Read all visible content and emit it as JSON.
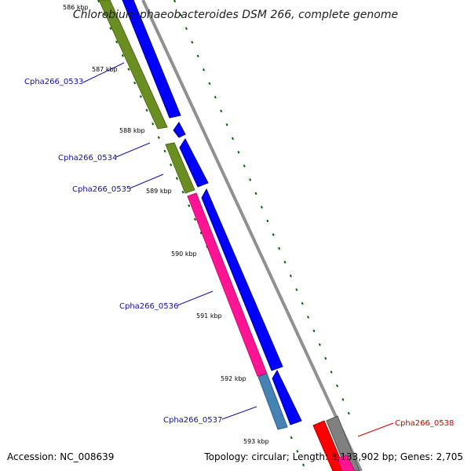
{
  "title": "Chlorobium phaeobacteroides DSM 266, complete genome",
  "ticks": [
    "586 kbp",
    "587 kbp",
    "588 kbp",
    "589 kbp",
    "590 kbp",
    "591 kbp",
    "592 kbp",
    "593 kbp"
  ],
  "genes": [
    {
      "label": "Cpha266_0533",
      "color": "#1010a0"
    },
    {
      "label": "Cpha266_0534",
      "color": "#1010a0"
    },
    {
      "label": "Cpha266_0535",
      "color": "#1010a0"
    },
    {
      "label": "Cpha266_0536",
      "color": "#1010a0"
    },
    {
      "label": "Cpha266_0537",
      "color": "#1010a0"
    },
    {
      "label": "Cpha266_0538",
      "color": "#cc0000"
    }
  ],
  "colors": {
    "olive": "#6b8e23",
    "blue": "#0000ff",
    "pink": "#ff1493",
    "steel": "#4682b4",
    "red": "#ff0000",
    "gray": "#808080",
    "dots": "#006400"
  },
  "footer": {
    "accession": "Accession: NC_008639",
    "summary": "Topology: circular; Length: 3,133,902 bp; Genes: 2,705"
  }
}
